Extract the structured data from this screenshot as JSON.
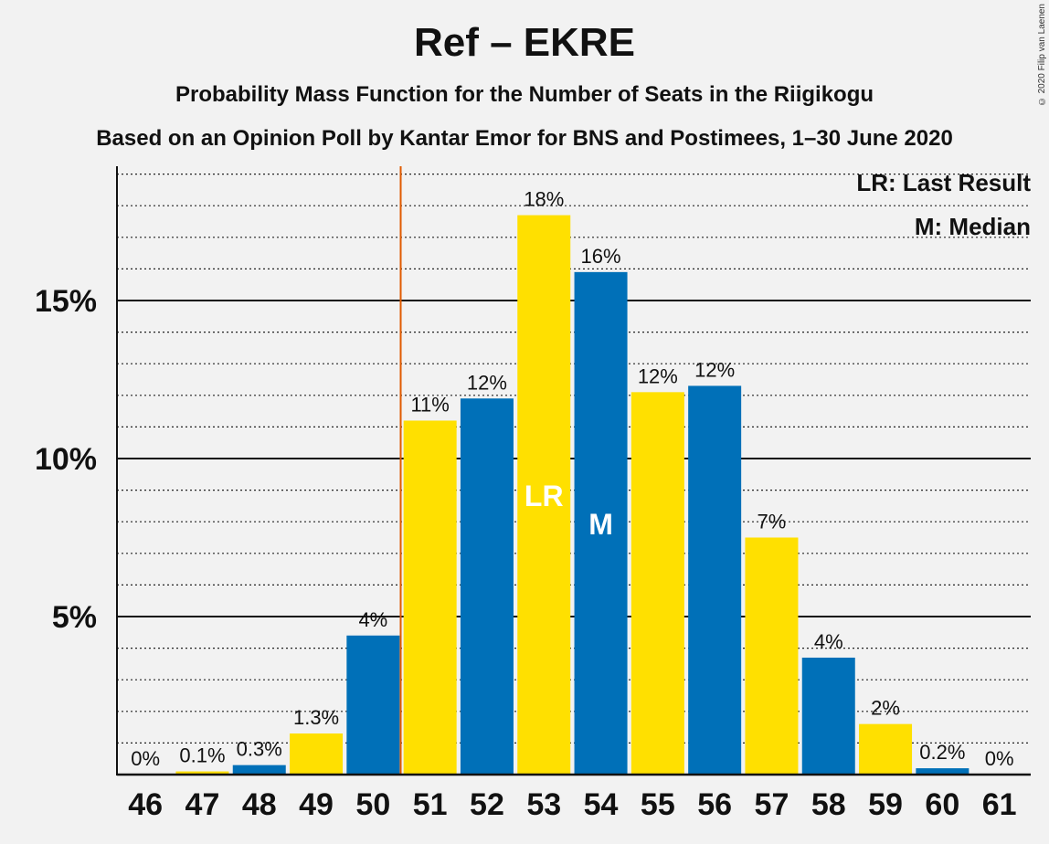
{
  "chart_data": {
    "type": "bar",
    "title": "Ref – EKRE",
    "subtitle": "Probability Mass Function for the Number of Seats in the Riigikogu",
    "subtitle2": "Based on an Opinion Poll by Kantar Emor for BNS and Postimees, 1–30 June 2020",
    "copyright": "© 2020 Filip van Laenen",
    "categories": [
      "46",
      "47",
      "48",
      "49",
      "50",
      "51",
      "52",
      "53",
      "54",
      "55",
      "56",
      "57",
      "58",
      "59",
      "60",
      "61"
    ],
    "values": [
      0,
      0.1,
      0.3,
      1.3,
      4.4,
      11.2,
      11.9,
      17.7,
      15.9,
      12.1,
      12.3,
      7.5,
      3.7,
      1.6,
      0.2,
      0
    ],
    "value_labels": [
      "0%",
      "0.1%",
      "0.3%",
      "1.3%",
      "4%",
      "11%",
      "12%",
      "18%",
      "16%",
      "12%",
      "12%",
      "7%",
      "4%",
      "2%",
      "0.2%",
      "0%"
    ],
    "ylim": [
      0,
      19.3
    ],
    "yticks": [
      5,
      10,
      15
    ],
    "ytick_labels": [
      "5%",
      "10%",
      "15%"
    ],
    "minor_grid_step": 1,
    "grid": true,
    "last_result_seat": "53",
    "median_seat": "54",
    "last_result_marker": "LR",
    "median_marker": "M",
    "threshold_after_seat": "50",
    "legend": [
      "LR: Last Result",
      "M: Median"
    ],
    "legend_position": "top-right",
    "colors": {
      "blue": "#0070b8",
      "yellow": "#ffe000",
      "threshold": "#e05a00",
      "background": "#f2f2f2",
      "text": "#111111"
    }
  }
}
